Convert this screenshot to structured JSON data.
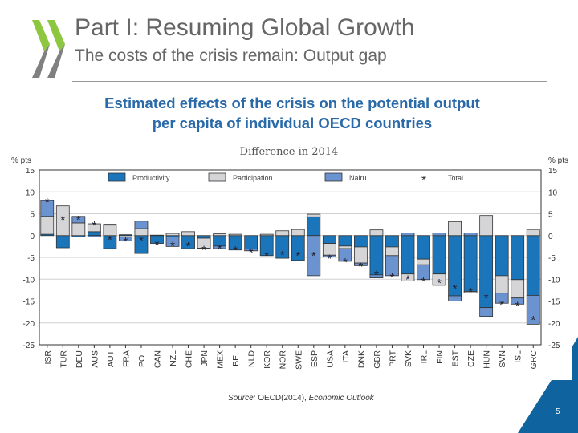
{
  "slide": {
    "title": "Part I: Resuming Global Growth",
    "subtitle": "The costs of the crisis remain: Output gap",
    "heading_line1": "Estimated effects of the crisis on the potential output",
    "heading_line2": "per capita of individual OECD countries",
    "source_label": "Source:",
    "source_text": " OECD(2014), ",
    "source_pub": "Economic Outlook",
    "page_number": "5",
    "logo": "OECD-chevrons-logo"
  },
  "colors": {
    "productivity": "#1b75bb",
    "participation": "#d5d5d7",
    "nairu": "#6b93cf",
    "title": "#2a6aa8",
    "brand_blue": "#0f64a0",
    "logo_green": "#8dc63f",
    "logo_grey": "#808080"
  },
  "chart_data": {
    "type": "bar",
    "stacked": true,
    "title": "Difference in 2014",
    "ylabel_left": "% pts",
    "ylabel_right": "% pts",
    "ylim": [
      -25,
      15
    ],
    "yticks": [
      15,
      10,
      5,
      0,
      -5,
      -10,
      -15,
      -20,
      -25
    ],
    "grid": true,
    "legend_position": "top",
    "categories": [
      "ISR",
      "TUR",
      "DEU",
      "AUS",
      "AUT",
      "FRA",
      "POL",
      "CAN",
      "NZL",
      "CHE",
      "JPN",
      "MEX",
      "BEL",
      "NLD",
      "KOR",
      "NOR",
      "SWE",
      "ESP",
      "USA",
      "ITA",
      "DNK",
      "GBR",
      "PRT",
      "SVK",
      "IRL",
      "FIN",
      "EST",
      "CZE",
      "HUN",
      "SVN",
      "ISL",
      "GRC"
    ],
    "series": [
      {
        "name": "Productivity",
        "values": [
          0.3,
          -2.8,
          -0.3,
          0.9,
          -3.0,
          0.2,
          -4.1,
          -1.8,
          -0.3,
          -3.0,
          -0.6,
          -2.4,
          -3.3,
          -3.1,
          -4.6,
          -5.2,
          -5.7,
          4.3,
          -1.8,
          -2.4,
          -2.6,
          -9.0,
          -2.6,
          -8.8,
          -5.4,
          -8.8,
          -13.8,
          -12.8,
          -16.5,
          -9.2,
          -10.1,
          -13.7
        ]
      },
      {
        "name": "Participation",
        "values": [
          4.1,
          6.8,
          2.9,
          1.8,
          2.4,
          -0.3,
          1.6,
          0.0,
          0.5,
          0.9,
          -2.3,
          0.4,
          0.3,
          0.0,
          0.3,
          1.1,
          1.4,
          0.6,
          -2.7,
          -0.6,
          -3.7,
          1.3,
          -2.0,
          -1.6,
          -1.3,
          -2.6,
          3.2,
          -0.3,
          4.6,
          -4.0,
          -4.2,
          1.4
        ]
      },
      {
        "name": "Nairu",
        "values": [
          3.6,
          0.0,
          1.5,
          -0.3,
          0.2,
          -0.9,
          1.7,
          0.1,
          -2.2,
          0.0,
          -0.1,
          -0.6,
          0.0,
          -0.4,
          0.0,
          0.0,
          0.0,
          -9.2,
          -0.4,
          -2.9,
          -0.6,
          -0.7,
          -4.6,
          0.6,
          -3.4,
          0.6,
          -1.2,
          0.6,
          -2.0,
          -2.3,
          -1.4,
          -6.6
        ]
      },
      {
        "name": "Total",
        "values": [
          8.0,
          4.0,
          4.0,
          2.7,
          -0.6,
          -1.0,
          -0.8,
          -1.7,
          -2.0,
          -2.1,
          -2.9,
          -2.6,
          -3.0,
          -3.5,
          -4.3,
          -4.1,
          -4.3,
          -4.3,
          -4.9,
          -5.7,
          -6.7,
          -8.6,
          -9.2,
          -9.7,
          -10.1,
          -10.5,
          -11.8,
          -12.5,
          -13.9,
          -15.5,
          -15.7,
          -18.9
        ]
      }
    ]
  }
}
